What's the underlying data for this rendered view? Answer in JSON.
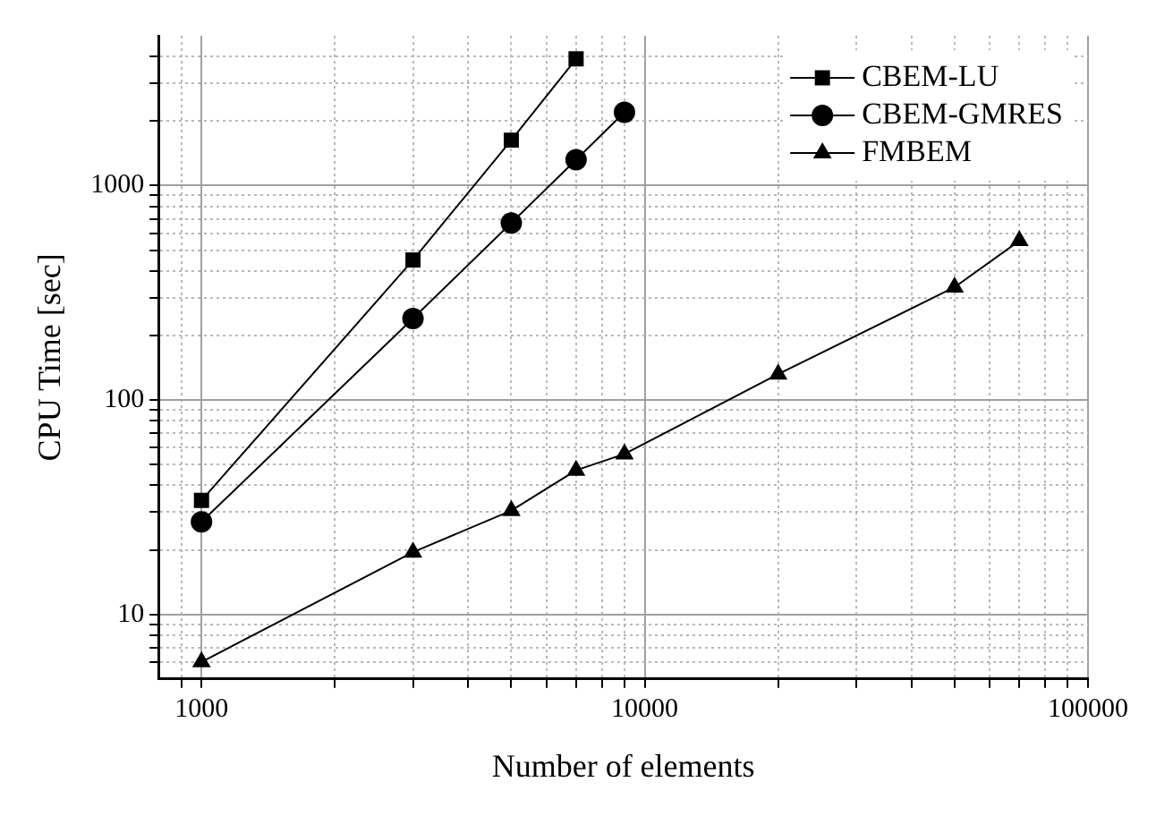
{
  "chart_data": {
    "type": "line",
    "xlabel": "Number of elements",
    "ylabel": "CPU Time [sec]",
    "log": "xy",
    "grid": true,
    "legend": "top right",
    "line_style": "solid",
    "xlim": [
      800,
      100000
    ],
    "xticks": [
      {
        "value": 900,
        "label": null
      },
      1000,
      {
        "value": 2000,
        "label": null
      },
      {
        "value": 3000,
        "label": null
      },
      {
        "value": 4000,
        "label": null
      },
      {
        "value": 5000,
        "label": null
      },
      {
        "value": 6000,
        "label": null
      },
      {
        "value": 7000,
        "label": null
      },
      {
        "value": 8000,
        "label": null
      },
      {
        "value": 9000,
        "label": null
      },
      10000,
      {
        "value": 20000,
        "label": null
      },
      {
        "value": 30000,
        "label": null
      },
      {
        "value": 40000,
        "label": null
      },
      {
        "value": 50000,
        "label": null
      },
      {
        "value": 60000,
        "label": null
      },
      {
        "value": 70000,
        "label": null
      },
      {
        "value": 80000,
        "label": null
      },
      {
        "value": 90000,
        "label": null
      },
      100000
    ],
    "ylim": [
      5,
      5000
    ],
    "yticks": [
      {
        "value": 6,
        "label": null
      },
      {
        "value": 7,
        "label": null
      },
      {
        "value": 8,
        "label": null
      },
      {
        "value": 9,
        "label": null
      },
      10,
      {
        "value": 20,
        "label": null
      },
      {
        "value": 30,
        "label": null
      },
      {
        "value": 40,
        "label": null
      },
      {
        "value": 50,
        "label": null
      },
      {
        "value": 60,
        "label": null
      },
      {
        "value": 70,
        "label": null
      },
      {
        "value": 80,
        "label": null
      },
      {
        "value": 90,
        "label": null
      },
      100,
      {
        "value": 200,
        "label": null
      },
      {
        "value": 300,
        "label": null
      },
      {
        "value": 400,
        "label": null
      },
      {
        "value": 500,
        "label": null
      },
      {
        "value": 600,
        "label": null
      },
      {
        "value": 700,
        "label": null
      },
      {
        "value": 800,
        "label": null
      },
      {
        "value": 900,
        "label": null
      },
      1000,
      {
        "value": 2000,
        "label": null
      },
      {
        "value": 3000,
        "label": null
      },
      {
        "value": 4000,
        "label": null
      }
    ],
    "series": [
      {
        "name": "CBEM-LU",
        "color": "#000000",
        "marker": "square",
        "x": [
          1000,
          3000,
          5000,
          7000
        ],
        "values": [
          34,
          450,
          1630,
          3900
        ]
      },
      {
        "name": "CBEM-GMRES",
        "color": "#000000",
        "marker": "circle",
        "x": [
          1000,
          3000,
          5000,
          7000,
          9000
        ],
        "values": [
          27,
          240,
          670,
          1320,
          2200
        ]
      },
      {
        "name": "FMBEM",
        "color": "#000000",
        "marker": "triangle",
        "x": [
          1000,
          3000,
          5000,
          7000,
          9000,
          20000,
          50000,
          70000
        ],
        "values": [
          6,
          19.5,
          30.5,
          47,
          56,
          132,
          336,
          553
        ]
      }
    ]
  }
}
